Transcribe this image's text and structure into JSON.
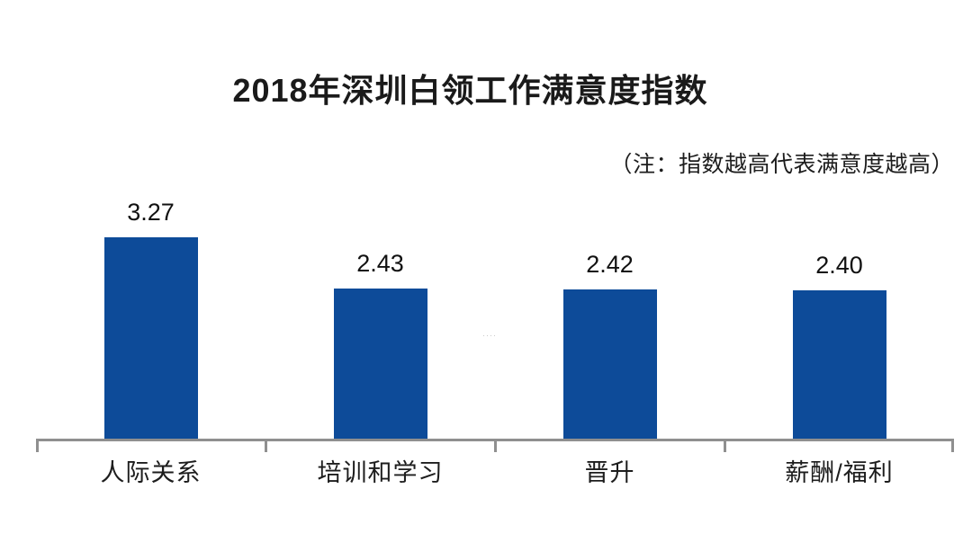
{
  "title": "2018年深圳白领工作满意度指数",
  "note": "（注：指数越高代表满意度越高）",
  "artifact": "····",
  "chart_data": {
    "type": "bar",
    "title": "2018年深圳白领工作满意度指数",
    "subtitle": "（注：指数越高代表满意度越高）",
    "categories": [
      "人际关系",
      "培训和学习",
      "晋升",
      "薪酬/福利"
    ],
    "values": [
      3.27,
      2.43,
      2.42,
      2.4
    ],
    "value_labels": [
      "3.27",
      "2.43",
      "2.42",
      "2.40"
    ],
    "xlabel": "",
    "ylabel": "",
    "ylim": [
      0,
      3.5
    ],
    "grid": false,
    "legend": false,
    "value_label_position": "above-bar",
    "bar_color": "#0d4b99",
    "axis_color": "#8f8f8f",
    "text_color": "#1a1a1a"
  }
}
